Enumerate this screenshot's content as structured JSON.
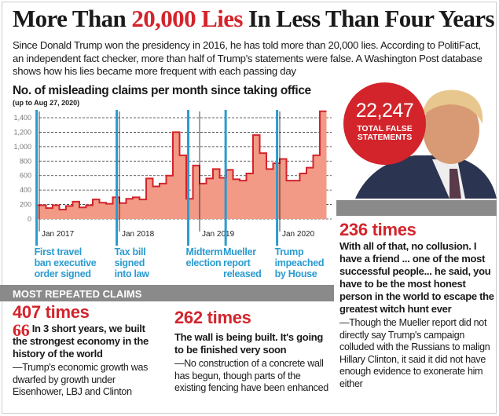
{
  "header": {
    "title_pre": "More Than ",
    "title_highlight": "20,000 Lies",
    "title_post": " In Less Than Four Years",
    "intro": "Since Donald Trump won the presidency in 2016, he has told more than 20,000 lies. According to PolitiFact, an independent fact checker, more than half of Trump's statements were false. A Washington Post database shows how his lies became more frequent with each passing day"
  },
  "badge": {
    "number": "22,247",
    "label_line1": "TOTAL FALSE",
    "label_line2": "STATEMENTS"
  },
  "colors": {
    "accent": "#d3242b",
    "event_line": "#2a9bd0",
    "area_fill": "#f29a86",
    "gray_bar": "#8a8a8a"
  },
  "chart_data": {
    "type": "area",
    "step": true,
    "title": "No. of misleading claims per month since taking office",
    "subtitle": "(up to Aug 27, 2020)",
    "ylim": [
      0,
      1500
    ],
    "yticks": [
      "0",
      "200",
      "400",
      "600",
      "800",
      "1,000",
      "1,200",
      "1,400"
    ],
    "ytick_values": [
      0,
      200,
      400,
      600,
      800,
      1000,
      1200,
      1400
    ],
    "grid": true,
    "xticks": [
      {
        "label": "Jan 2017",
        "month": 0
      },
      {
        "label": "Jan 2018",
        "month": 12
      },
      {
        "label": "Jan 2019",
        "month": 24
      },
      {
        "label": "Jan 2020",
        "month": 36
      }
    ],
    "values": [
      190,
      150,
      190,
      130,
      180,
      240,
      160,
      190,
      270,
      225,
      210,
      300,
      220,
      280,
      300,
      270,
      560,
      450,
      490,
      600,
      1200,
      880,
      280,
      740,
      490,
      560,
      690,
      570,
      680,
      550,
      530,
      630,
      1160,
      910,
      690,
      770,
      830,
      530,
      530,
      630,
      710,
      880,
      1490
    ],
    "events": [
      {
        "month": -0.4,
        "label_lines": [
          "First travel",
          "ban executive",
          "order signed"
        ]
      },
      {
        "month": 11.6,
        "label_lines": [
          "Tax bill",
          "signed",
          "into law"
        ]
      },
      {
        "month": 22.3,
        "label_lines": [
          "Midterm",
          "election"
        ]
      },
      {
        "month": 27.9,
        "label_lines": [
          "Mueller",
          "report",
          "released"
        ]
      },
      {
        "month": 35.6,
        "label_lines": [
          "Trump",
          "impeached",
          "by House"
        ]
      }
    ]
  },
  "section_label": "MOST REPEATED CLAIMS",
  "claims": [
    {
      "count": "407 times",
      "quote": "In 3 short years, we built the strongest economy in the history of the world",
      "note": "—Trump's economic growth was dwarfed by growth under Eisenhower, LBJ and Clinton",
      "quote_mark": "66"
    },
    {
      "count": "262 times",
      "quote": "The wall is being built. It's going to be finished very soon",
      "note": "—No construction of a concrete wall has begun, though parts of the existing fencing have been enhanced"
    },
    {
      "count": "236 times",
      "quote": "With all of that, no collusion. I have a friend ... one of the most successful people... he said, you have to be the most honest person in the world to escape the greatest witch hunt ever",
      "note": "—Though the Mueller report did not directly say Trump's campaign colluded with the Russians to malign Hillary Clinton, it said it did not have enough evidence to exonerate him either"
    }
  ]
}
